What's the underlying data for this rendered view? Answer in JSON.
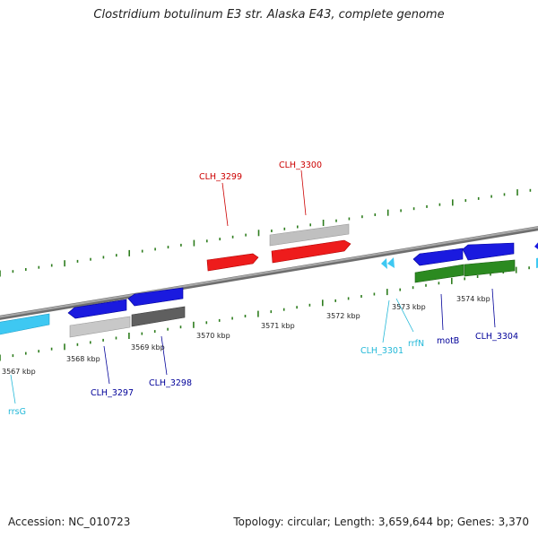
{
  "title": "Clostridium botulinum E3 str. Alaska E43, complete genome",
  "footer": {
    "accession": "Accession: NC_010723",
    "stats": "Topology: circular; Length: 3,659,644 bp; Genes: 3,370"
  },
  "colors": {
    "backbone": "#8c8c8c",
    "tick": "#2e7d1e",
    "cds_forward": "#ee1c1c",
    "cds_reverse": "#1a1adf",
    "rrna": "#3ec8f2",
    "trna": "#3ec8f2",
    "pseudo_grey": "#c0c0c0",
    "dark_grey": "#5f5f5f",
    "green_feature": "#2b8a20",
    "label_red": "#cc0000",
    "label_blue": "#000099",
    "label_cyan": "#22b8d8"
  },
  "ticks": [
    {
      "label": "3567 kbp"
    },
    {
      "label": "3568 kbp"
    },
    {
      "label": "3569 kbp"
    },
    {
      "label": "3570 kbp"
    },
    {
      "label": "3571 kbp"
    },
    {
      "label": "3572 kbp"
    },
    {
      "label": "3573 kbp"
    },
    {
      "label": "3574 kbp"
    }
  ],
  "gene_labels": [
    {
      "name": "CLH_3299",
      "color": "label_red"
    },
    {
      "name": "CLH_3300",
      "color": "label_red"
    },
    {
      "name": "CLH_3297",
      "color": "label_blue"
    },
    {
      "name": "CLH_3298",
      "color": "label_blue"
    },
    {
      "name": "rrsG",
      "color": "label_cyan"
    },
    {
      "name": "CLH_3301",
      "color": "label_cyan"
    },
    {
      "name": "rrfN",
      "color": "label_cyan"
    },
    {
      "name": "motB",
      "color": "label_blue"
    },
    {
      "name": "CLH_3304",
      "color": "label_blue"
    }
  ]
}
